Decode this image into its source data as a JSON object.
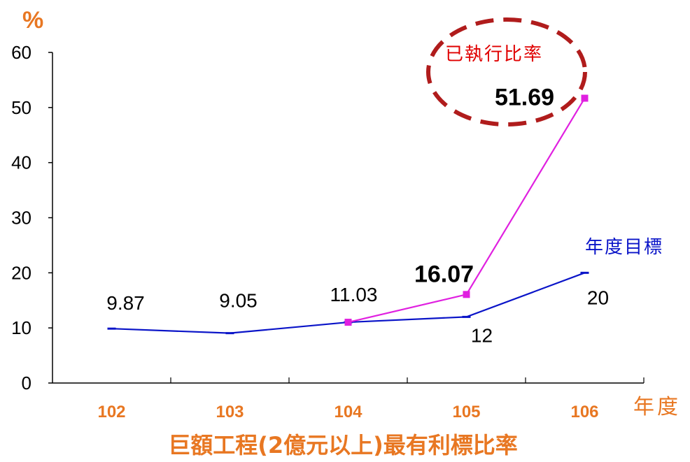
{
  "chart_data": {
    "type": "line",
    "title": "巨額工程(2億元以上)最有利標比率",
    "ylabel": "%",
    "xlabel": "年度",
    "categories": [
      "102",
      "103",
      "104",
      "105",
      "106"
    ],
    "ylim": [
      0,
      60
    ],
    "yticks": [
      "0",
      "10",
      "20",
      "30",
      "40",
      "50",
      "60"
    ],
    "series": [
      {
        "name": "年度目標",
        "color": "#0a14c8",
        "values": [
          9.87,
          9.05,
          11.03,
          12,
          20
        ],
        "labels": [
          "9.87",
          "9.05",
          "11.03",
          "12",
          "20"
        ]
      },
      {
        "name": "已執行比率",
        "color": "#e020e0",
        "values": [
          null,
          null,
          11.03,
          16.07,
          51.69
        ],
        "labels": [
          "",
          "",
          "",
          "16.07",
          "51.69"
        ]
      }
    ],
    "annotation_color": "#b01c1c"
  }
}
